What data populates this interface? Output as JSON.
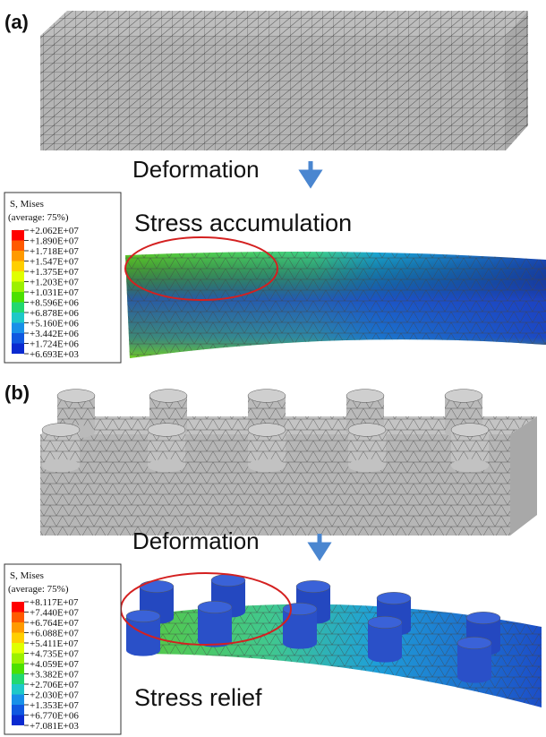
{
  "panels": [
    {
      "label": "(a)",
      "step": "Deformation",
      "caption": "Stress accumulation",
      "legend": {
        "title": "S, Mises",
        "subtitle": "(average: 75%)",
        "labels": [
          "+2.062E+07",
          "+1.890E+07",
          "+1.718E+07",
          "+1.547E+07",
          "+1.375E+07",
          "+1.203E+07",
          "+1.031E+07",
          "+8.596E+06",
          "+6.878E+06",
          "+5.160E+06",
          "+3.442E+06",
          "+1.724E+06",
          "+6.693E+03"
        ]
      }
    },
    {
      "label": "(b)",
      "step": "Deformation",
      "caption": "Stress relief",
      "legend": {
        "title": "S, Mises",
        "subtitle": "(average: 75%)",
        "labels": [
          "+8.117E+07",
          "+7.440E+07",
          "+6.764E+07",
          "+6.088E+07",
          "+5.411E+07",
          "+4.735E+07",
          "+4.059E+07",
          "+3.382E+07",
          "+2.706E+07",
          "+2.030E+07",
          "+1.353E+07",
          "+6.770E+06",
          "+7.081E+03"
        ]
      }
    }
  ]
}
